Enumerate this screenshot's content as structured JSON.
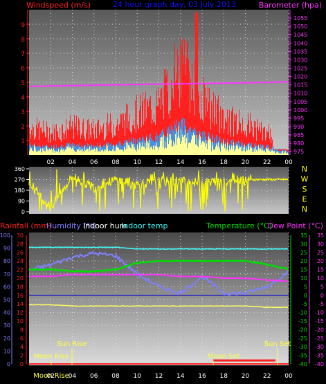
{
  "colors": {
    "windspeed": "#ff2020",
    "windaverage": "#4a90e0",
    "windgust_fill": "#ffff99",
    "barometer": "#ff33ff",
    "direction": "#ffff00",
    "humidity": "#8080ff",
    "indoor_hum": "#40e0e0",
    "indoor_temp": "#40ffff",
    "temperature": "#00e000",
    "dewpoint": "#ff33ff",
    "rainfall": "#ff2020",
    "title": "#1010ff",
    "sun": "#ffff40",
    "moon": "#ffff40"
  },
  "top_panel": {
    "left_label": "Windspeed (m/s)",
    "title": "24 hour graph day, 03 July 2013",
    "right_label": "Barometer (hpa)",
    "left_ticks": [
      "1",
      "2",
      "3",
      "4",
      "5",
      "6",
      "7",
      "8",
      "9"
    ],
    "right_ticks": [
      "975",
      "980",
      "985",
      "990",
      "995",
      "1000",
      "1005",
      "1010",
      "1015",
      "1020",
      "1025",
      "1030",
      "1035",
      "1040",
      "1045",
      "1050",
      "1055"
    ]
  },
  "mid_panel": {
    "ticks": [
      "0",
      "90",
      "180",
      "270",
      "360"
    ],
    "compass": [
      "N",
      "W",
      "S",
      "E",
      "N"
    ]
  },
  "bottom_panel": {
    "rain_label": "Rainfall (mm)",
    "humidity_label": "Humidity (%)",
    "indoor_hum_label": "Indoor hum",
    "indoor_temp_label": "Indoor temp",
    "temperature_label": "Temperature (°C)",
    "dewpoint_label": "Dew Point (°C)",
    "humidity_ticks": [
      "0",
      "10",
      "20",
      "30",
      "40",
      "50",
      "60",
      "70",
      "80",
      "90",
      "100"
    ],
    "rain_ticks": [
      "0",
      "2",
      "4",
      "6",
      "8",
      "10",
      "12",
      "14",
      "16",
      "18",
      "20",
      "22",
      "24",
      "26",
      "28",
      "30"
    ],
    "temp_ticks": [
      "-40",
      "-35",
      "-30",
      "-25",
      "-20",
      "-15",
      "-10",
      "-5",
      "0",
      "5",
      "10",
      "15",
      "20",
      "25",
      "30",
      "35"
    ],
    "sun_rise": "Sun Rise",
    "sun_set": "Sun Set",
    "moon_rise": "Moon Rise",
    "moon_set": "Moon Set"
  },
  "x_ticks": [
    "02",
    "04",
    "06",
    "08",
    "10",
    "12",
    "14",
    "16",
    "18",
    "20",
    "22",
    "00"
  ],
  "chart_data": [
    {
      "type": "line",
      "title": "24 hour graph day, 03 July 2013",
      "x_hours": [
        0,
        2,
        4,
        6,
        8,
        10,
        12,
        14,
        16,
        18,
        20,
        22,
        24
      ],
      "series": [
        {
          "name": "Windspeed (m/s)",
          "values": [
            1.0,
            0.8,
            1.0,
            0.9,
            1.1,
            1.5,
            1.8,
            3.2,
            2.0,
            1.3,
            1.1,
            0.8,
            0.3
          ]
        },
        {
          "name": "Barometer (hpa)",
          "values": [
            1014.0,
            1014.3,
            1014.5,
            1014.8,
            1015.0,
            1015.2,
            1015.4,
            1015.6,
            1015.8,
            1016.0,
            1016.2,
            1016.5,
            1016.9
          ]
        }
      ],
      "ylim_left": [
        0,
        10
      ],
      "ylim_right": [
        973,
        1060
      ]
    },
    {
      "type": "scatter",
      "series": [
        {
          "name": "Wind direction",
          "values": [
            240,
            30,
            300,
            200,
            270,
            230,
            250,
            260,
            240,
            270,
            280,
            270,
            270
          ]
        }
      ],
      "ylim": [
        0,
        360
      ]
    },
    {
      "type": "line",
      "x_hours": [
        0,
        2,
        4,
        6,
        8,
        10,
        12,
        14,
        16,
        18,
        20,
        22,
        24
      ],
      "series": [
        {
          "name": "Humidity (%)",
          "values": [
            73,
            77,
            83,
            86,
            84,
            70,
            60,
            55,
            68,
            55,
            55,
            60,
            72
          ]
        },
        {
          "name": "Indoor hum",
          "values": [
            46,
            46,
            45,
            45,
            45,
            45,
            45,
            45,
            45,
            45,
            45,
            44,
            44
          ]
        },
        {
          "name": "Indoor temp",
          "values": [
            28,
            28,
            28,
            28,
            28,
            27,
            27,
            27,
            27,
            27,
            27,
            27,
            27
          ]
        },
        {
          "name": "Temperature (°C)",
          "values": [
            15,
            15,
            14,
            14,
            15,
            19,
            20,
            20,
            20,
            20,
            20,
            18,
            15
          ]
        },
        {
          "name": "Dew Point (°C)",
          "values": [
            11,
            11,
            12,
            12,
            12,
            12,
            12,
            11,
            11,
            10,
            10,
            9,
            8
          ]
        },
        {
          "name": "Rainfall (mm)",
          "values": [
            0,
            0,
            0,
            0,
            0,
            0,
            0,
            0,
            0,
            0,
            0,
            0,
            0
          ]
        }
      ],
      "ylim_humidity": [
        0,
        100
      ],
      "ylim_temp": [
        -40,
        35
      ]
    }
  ]
}
